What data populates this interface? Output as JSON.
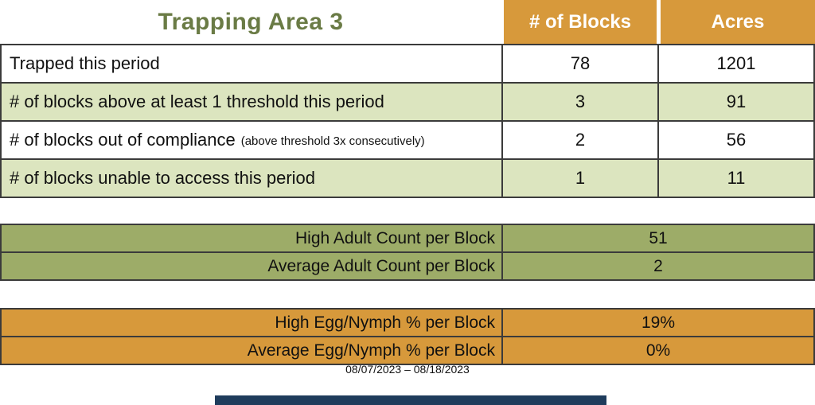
{
  "title": "Trapping Area 3",
  "date_range": "08/07/2023 – 08/18/2023",
  "colors": {
    "header_orange": "#d7993b",
    "row_light_green": "#dce5bf",
    "adult_table_olive": "#9dac68",
    "title_green": "#6a7b45",
    "border_dark": "#3b3b3b",
    "bottom_bar_navy": "#1f3c5c"
  },
  "main_table": {
    "col_headers": [
      "# of Blocks",
      "Acres"
    ],
    "rows": [
      {
        "label": "Trapped this period",
        "note": "",
        "blocks": "78",
        "acres": "1201"
      },
      {
        "label": "# of blocks above at least 1 threshold this period",
        "note": "",
        "blocks": "3",
        "acres": "91"
      },
      {
        "label": "# of blocks out of compliance",
        "note": "(above threshold 3x consecutively)",
        "blocks": "2",
        "acres": "56"
      },
      {
        "label": "# of blocks unable to access this period",
        "note": "",
        "blocks": "1",
        "acres": "11"
      }
    ]
  },
  "adult_table": {
    "rows": [
      {
        "label": "High Adult Count per Block",
        "value": "51"
      },
      {
        "label": "Average Adult Count per Block",
        "value": "2"
      }
    ]
  },
  "egg_table": {
    "rows": [
      {
        "label": "High Egg/Nymph % per Block",
        "value": "19%"
      },
      {
        "label": "Average Egg/Nymph % per Block",
        "value": "0%"
      }
    ]
  }
}
